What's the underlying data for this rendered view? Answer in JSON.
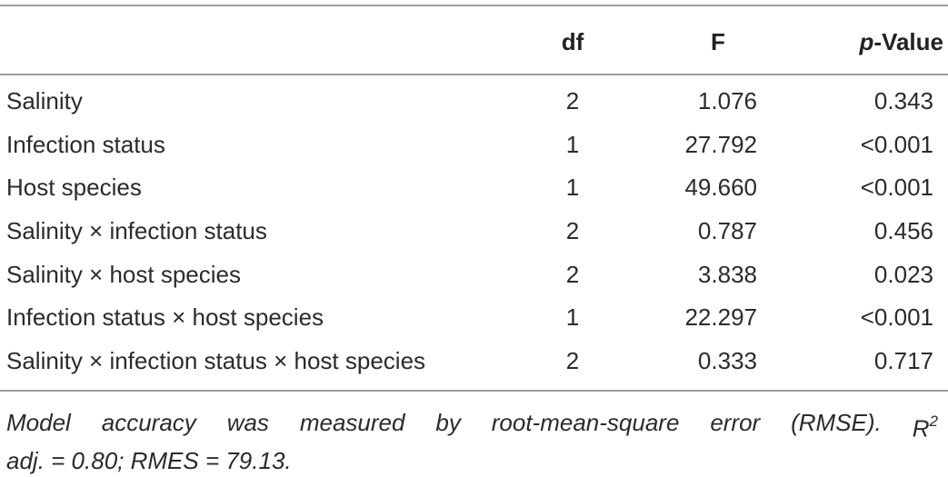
{
  "table": {
    "columns": {
      "df": "df",
      "f": "F",
      "p_italic": "p",
      "p_rest": "-Value"
    },
    "rows": [
      {
        "term": "Salinity",
        "df": "2",
        "f": "1.076",
        "p": "0.343"
      },
      {
        "term": "Infection status",
        "df": "1",
        "f": "27.792",
        "p": "<0.001"
      },
      {
        "term": "Host species",
        "df": "1",
        "f": "49.660",
        "p": "<0.001"
      },
      {
        "term": "Salinity × infection status",
        "df": "2",
        "f": "0.787",
        "p": "0.456"
      },
      {
        "term": "Salinity × host species",
        "df": "2",
        "f": "3.838",
        "p": "0.023"
      },
      {
        "term": "Infection status × host species",
        "df": "1",
        "f": "22.297",
        "p": "<0.001"
      },
      {
        "term": "Salinity × infection status × host species",
        "df": "2",
        "f": "0.333",
        "p": "0.717"
      }
    ]
  },
  "footnote": {
    "words": [
      "Model",
      "accuracy",
      "was",
      "measured",
      "by",
      "root-mean-square",
      "error",
      "(RMSE).",
      "R"
    ],
    "superscript": "2",
    "line2": "adj. = 0.80; RMES = 79.13."
  }
}
